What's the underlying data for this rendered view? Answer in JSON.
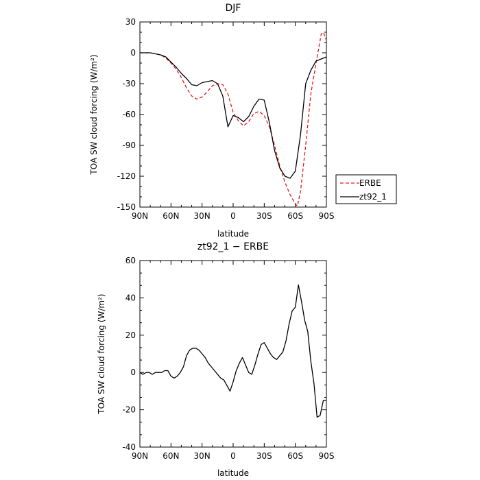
{
  "chart_data": [
    {
      "type": "line",
      "title": "DJF",
      "xlabel": "latitude",
      "ylabel": "TOA SW cloud forcing (W/m²)",
      "xlim": [
        90,
        -90
      ],
      "ylim": [
        -150,
        30
      ],
      "xticks": [
        90,
        60,
        30,
        0,
        -30,
        -60,
        -90
      ],
      "xtick_labels": [
        "90N",
        "60N",
        "30N",
        "0",
        "30S",
        "60S",
        "90S"
      ],
      "yticks": [
        -150,
        -120,
        -90,
        -60,
        -30,
        0,
        30
      ],
      "ytick_labels": [
        "-150",
        "-120",
        "-90",
        "-60",
        "-30",
        "0",
        "30"
      ],
      "legend": "outside-right",
      "series": [
        {
          "name": "ERBE",
          "color": "#e41a1c",
          "dash": "dashed",
          "x": [
            90,
            85,
            80,
            75,
            70,
            65,
            60,
            55,
            50,
            45,
            40,
            35,
            30,
            25,
            20,
            15,
            10,
            5,
            0,
            -5,
            -10,
            -15,
            -20,
            -25,
            -30,
            -35,
            -40,
            -45,
            -50,
            -55,
            -60,
            -62,
            -65,
            -70,
            -75,
            -80,
            -85,
            -87,
            -90
          ],
          "y": [
            0,
            0,
            0,
            -1,
            -2,
            -5,
            -10,
            -16,
            -24,
            -34,
            -42,
            -45,
            -43,
            -38,
            -32,
            -30,
            -31,
            -40,
            -58,
            -66,
            -71,
            -67,
            -59,
            -57,
            -61,
            -72,
            -90,
            -110,
            -126,
            -138,
            -147,
            -149,
            -135,
            -90,
            -40,
            -10,
            18,
            20,
            12
          ]
        },
        {
          "name": "zt92_1",
          "color": "#000000",
          "dash": "solid",
          "x": [
            90,
            85,
            80,
            75,
            70,
            65,
            60,
            55,
            50,
            45,
            40,
            35,
            30,
            25,
            20,
            15,
            10,
            7,
            5,
            0,
            -5,
            -10,
            -15,
            -20,
            -25,
            -30,
            -35,
            -40,
            -45,
            -50,
            -55,
            -60,
            -65,
            -70,
            -75,
            -80,
            -85,
            -90
          ],
          "y": [
            0,
            0,
            0,
            -1,
            -2,
            -4,
            -9,
            -14,
            -20,
            -25,
            -31,
            -32,
            -29,
            -28,
            -27,
            -30,
            -42,
            -60,
            -72,
            -61,
            -63,
            -67,
            -62,
            -52,
            -45,
            -46,
            -68,
            -95,
            -112,
            -120,
            -122,
            -115,
            -80,
            -30,
            -17,
            -8,
            -6,
            -4
          ]
        }
      ]
    },
    {
      "type": "line",
      "title": "zt92_1 − ERBE",
      "xlabel": "latitude",
      "ylabel": "TOA SW cloud forcing (W/m²)",
      "xlim": [
        90,
        -90
      ],
      "ylim": [
        -40,
        60
      ],
      "xticks": [
        90,
        60,
        30,
        0,
        -30,
        -60,
        -90
      ],
      "xtick_labels": [
        "90N",
        "60N",
        "30N",
        "0",
        "30S",
        "60S",
        "90S"
      ],
      "yticks": [
        -40,
        -20,
        0,
        20,
        40,
        60
      ],
      "ytick_labels": [
        "-40",
        "-20",
        "0",
        "20",
        "40",
        "60"
      ],
      "series": [
        {
          "color": "#000000",
          "dash": "solid",
          "x": [
            90,
            87,
            84,
            81,
            78,
            75,
            72,
            69,
            66,
            63,
            60,
            57,
            54,
            51,
            48,
            45,
            42,
            39,
            36,
            33,
            30,
            27,
            24,
            21,
            18,
            15,
            12,
            9,
            6,
            3,
            0,
            -3,
            -6,
            -9,
            -12,
            -15,
            -18,
            -21,
            -24,
            -27,
            -30,
            -33,
            -36,
            -39,
            -42,
            -45,
            -48,
            -51,
            -54,
            -57,
            -60,
            -63,
            -66,
            -69,
            -72,
            -75,
            -78,
            -81,
            -84,
            -87,
            -90
          ],
          "y": [
            0,
            -1,
            0,
            0,
            -1,
            0,
            0,
            0,
            1,
            1,
            -2,
            -3,
            -2,
            0,
            3,
            9,
            12,
            13,
            13,
            12,
            10,
            8,
            5,
            3,
            1,
            -1,
            -3,
            -4,
            -7,
            -10,
            -5,
            1,
            5,
            8,
            4,
            0,
            -1,
            4,
            10,
            15,
            16,
            13,
            10,
            8,
            7,
            9,
            11,
            17,
            26,
            33,
            35,
            47,
            38,
            28,
            22,
            6,
            -6,
            -24,
            -23,
            -15,
            -15
          ]
        }
      ]
    }
  ]
}
